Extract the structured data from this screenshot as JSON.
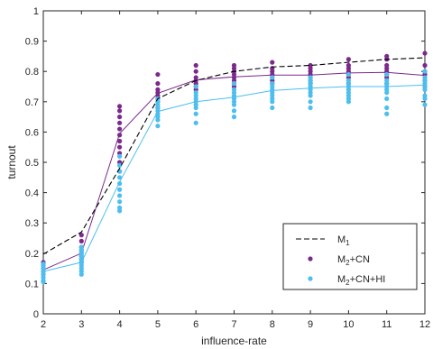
{
  "chart_data": {
    "type": "scatter",
    "xlabel": "influence-rate",
    "ylabel": "turnout",
    "xlim": [
      2,
      12
    ],
    "ylim": [
      0,
      1
    ],
    "xticks": [
      2,
      3,
      4,
      5,
      6,
      7,
      8,
      9,
      10,
      11,
      12
    ],
    "yticks": [
      0,
      0.1,
      0.2,
      0.3,
      0.4,
      0.5,
      0.6,
      0.7,
      0.8,
      0.9,
      1
    ],
    "ytick_labels": [
      "0",
      "0.1",
      "0.2",
      "0.3",
      "0.4",
      "0.5",
      "0.6",
      "0.7",
      "0.8",
      "0.9",
      "1"
    ],
    "legend_position": "bottom-right",
    "grid": false,
    "series": [
      {
        "name": "M1",
        "legend_label": {
          "base": "M",
          "sub": "1",
          "rest": ""
        },
        "kind": "dashed-line",
        "color": "#000000",
        "x": [
          2,
          3,
          4,
          5,
          6,
          7,
          8,
          9,
          10,
          11,
          12
        ],
        "y": [
          0.197,
          0.27,
          0.48,
          0.71,
          0.77,
          0.8,
          0.815,
          0.82,
          0.83,
          0.84,
          0.845
        ]
      },
      {
        "name": "M2+CN",
        "legend_label": {
          "base": "M",
          "sub": "2",
          "rest": "+CN"
        },
        "kind": "mean-line-with-points",
        "color": "#7B2A8B",
        "x": [
          2,
          3,
          4,
          5,
          6,
          7,
          8,
          9,
          10,
          11,
          12
        ],
        "y": [
          0.145,
          0.2,
          0.595,
          0.728,
          0.772,
          0.782,
          0.788,
          0.788,
          0.795,
          0.797,
          0.787
        ],
        "points": [
          [
            2,
            0.13
          ],
          [
            2,
            0.14
          ],
          [
            2,
            0.15
          ],
          [
            2,
            0.16
          ],
          [
            2,
            0.17
          ],
          [
            3,
            0.17
          ],
          [
            3,
            0.18
          ],
          [
            3,
            0.19
          ],
          [
            3,
            0.2
          ],
          [
            3,
            0.21
          ],
          [
            3,
            0.22
          ],
          [
            3,
            0.24
          ],
          [
            3,
            0.26
          ],
          [
            4,
            0.47
          ],
          [
            4,
            0.5
          ],
          [
            4,
            0.53
          ],
          [
            4,
            0.55
          ],
          [
            4,
            0.57
          ],
          [
            4,
            0.59
          ],
          [
            4,
            0.61
          ],
          [
            4,
            0.63
          ],
          [
            4,
            0.65
          ],
          [
            4,
            0.67
          ],
          [
            4,
            0.685
          ],
          [
            5,
            0.68
          ],
          [
            5,
            0.7
          ],
          [
            5,
            0.71
          ],
          [
            5,
            0.72
          ],
          [
            5,
            0.73
          ],
          [
            5,
            0.74
          ],
          [
            5,
            0.76
          ],
          [
            5,
            0.79
          ],
          [
            6,
            0.74
          ],
          [
            6,
            0.75
          ],
          [
            6,
            0.76
          ],
          [
            6,
            0.77
          ],
          [
            6,
            0.78
          ],
          [
            6,
            0.8
          ],
          [
            6,
            0.82
          ],
          [
            7,
            0.75
          ],
          [
            7,
            0.76
          ],
          [
            7,
            0.77
          ],
          [
            7,
            0.78
          ],
          [
            7,
            0.79
          ],
          [
            7,
            0.8
          ],
          [
            7,
            0.81
          ],
          [
            7,
            0.82
          ],
          [
            8,
            0.76
          ],
          [
            8,
            0.77
          ],
          [
            8,
            0.78
          ],
          [
            8,
            0.79
          ],
          [
            8,
            0.8
          ],
          [
            8,
            0.81
          ],
          [
            8,
            0.83
          ],
          [
            9,
            0.76
          ],
          [
            9,
            0.77
          ],
          [
            9,
            0.78
          ],
          [
            9,
            0.79
          ],
          [
            9,
            0.8
          ],
          [
            9,
            0.81
          ],
          [
            9,
            0.82
          ],
          [
            10,
            0.76
          ],
          [
            10,
            0.78
          ],
          [
            10,
            0.79
          ],
          [
            10,
            0.8
          ],
          [
            10,
            0.81
          ],
          [
            10,
            0.82
          ],
          [
            10,
            0.84
          ],
          [
            11,
            0.76
          ],
          [
            11,
            0.78
          ],
          [
            11,
            0.79
          ],
          [
            11,
            0.8
          ],
          [
            11,
            0.81
          ],
          [
            11,
            0.82
          ],
          [
            11,
            0.84
          ],
          [
            11,
            0.85
          ],
          [
            12,
            0.75
          ],
          [
            12,
            0.77
          ],
          [
            12,
            0.78
          ],
          [
            12,
            0.79
          ],
          [
            12,
            0.8
          ],
          [
            12,
            0.82
          ],
          [
            12,
            0.86
          ]
        ]
      },
      {
        "name": "M2+CN+HI",
        "legend_label": {
          "base": "M",
          "sub": "2",
          "rest": "+CN+HI"
        },
        "kind": "mean-line-with-points",
        "color": "#4DBEEE",
        "x": [
          2,
          3,
          4,
          5,
          6,
          7,
          8,
          9,
          10,
          11,
          12
        ],
        "y": [
          0.14,
          0.17,
          0.435,
          0.668,
          0.7,
          0.715,
          0.737,
          0.745,
          0.75,
          0.75,
          0.755
        ],
        "points": [
          [
            2,
            0.105
          ],
          [
            2,
            0.11
          ],
          [
            2,
            0.12
          ],
          [
            2,
            0.13
          ],
          [
            2,
            0.14
          ],
          [
            2,
            0.15
          ],
          [
            2,
            0.16
          ],
          [
            2,
            0.165
          ],
          [
            3,
            0.13
          ],
          [
            3,
            0.14
          ],
          [
            3,
            0.15
          ],
          [
            3,
            0.16
          ],
          [
            3,
            0.17
          ],
          [
            3,
            0.18
          ],
          [
            3,
            0.19
          ],
          [
            3,
            0.2
          ],
          [
            3,
            0.21
          ],
          [
            3,
            0.22
          ],
          [
            4,
            0.34
          ],
          [
            4,
            0.35
          ],
          [
            4,
            0.37
          ],
          [
            4,
            0.39
          ],
          [
            4,
            0.41
          ],
          [
            4,
            0.43
          ],
          [
            4,
            0.45
          ],
          [
            4,
            0.47
          ],
          [
            4,
            0.49
          ],
          [
            4,
            0.52
          ],
          [
            5,
            0.62
          ],
          [
            5,
            0.64
          ],
          [
            5,
            0.65
          ],
          [
            5,
            0.66
          ],
          [
            5,
            0.67
          ],
          [
            5,
            0.68
          ],
          [
            5,
            0.69
          ],
          [
            5,
            0.7
          ],
          [
            5,
            0.71
          ],
          [
            6,
            0.63
          ],
          [
            6,
            0.66
          ],
          [
            6,
            0.68
          ],
          [
            6,
            0.69
          ],
          [
            6,
            0.7
          ],
          [
            6,
            0.71
          ],
          [
            6,
            0.72
          ],
          [
            6,
            0.73
          ],
          [
            6,
            0.75
          ],
          [
            7,
            0.65
          ],
          [
            7,
            0.67
          ],
          [
            7,
            0.69
          ],
          [
            7,
            0.7
          ],
          [
            7,
            0.71
          ],
          [
            7,
            0.72
          ],
          [
            7,
            0.73
          ],
          [
            7,
            0.74
          ],
          [
            7,
            0.76
          ],
          [
            8,
            0.68
          ],
          [
            8,
            0.7
          ],
          [
            8,
            0.71
          ],
          [
            8,
            0.72
          ],
          [
            8,
            0.73
          ],
          [
            8,
            0.74
          ],
          [
            8,
            0.75
          ],
          [
            8,
            0.76
          ],
          [
            8,
            0.78
          ],
          [
            9,
            0.68
          ],
          [
            9,
            0.7
          ],
          [
            9,
            0.72
          ],
          [
            9,
            0.73
          ],
          [
            9,
            0.74
          ],
          [
            9,
            0.75
          ],
          [
            9,
            0.76
          ],
          [
            9,
            0.77
          ],
          [
            9,
            0.78
          ],
          [
            10,
            0.7
          ],
          [
            10,
            0.71
          ],
          [
            10,
            0.72
          ],
          [
            10,
            0.73
          ],
          [
            10,
            0.74
          ],
          [
            10,
            0.75
          ],
          [
            10,
            0.76
          ],
          [
            10,
            0.77
          ],
          [
            10,
            0.79
          ],
          [
            11,
            0.66
          ],
          [
            11,
            0.68
          ],
          [
            11,
            0.71
          ],
          [
            11,
            0.73
          ],
          [
            11,
            0.74
          ],
          [
            11,
            0.75
          ],
          [
            11,
            0.76
          ],
          [
            11,
            0.77
          ],
          [
            11,
            0.79
          ],
          [
            12,
            0.69
          ],
          [
            12,
            0.71
          ],
          [
            12,
            0.72
          ],
          [
            12,
            0.74
          ],
          [
            12,
            0.75
          ],
          [
            12,
            0.76
          ],
          [
            12,
            0.77
          ],
          [
            12,
            0.78
          ],
          [
            12,
            0.8
          ]
        ]
      }
    ]
  }
}
